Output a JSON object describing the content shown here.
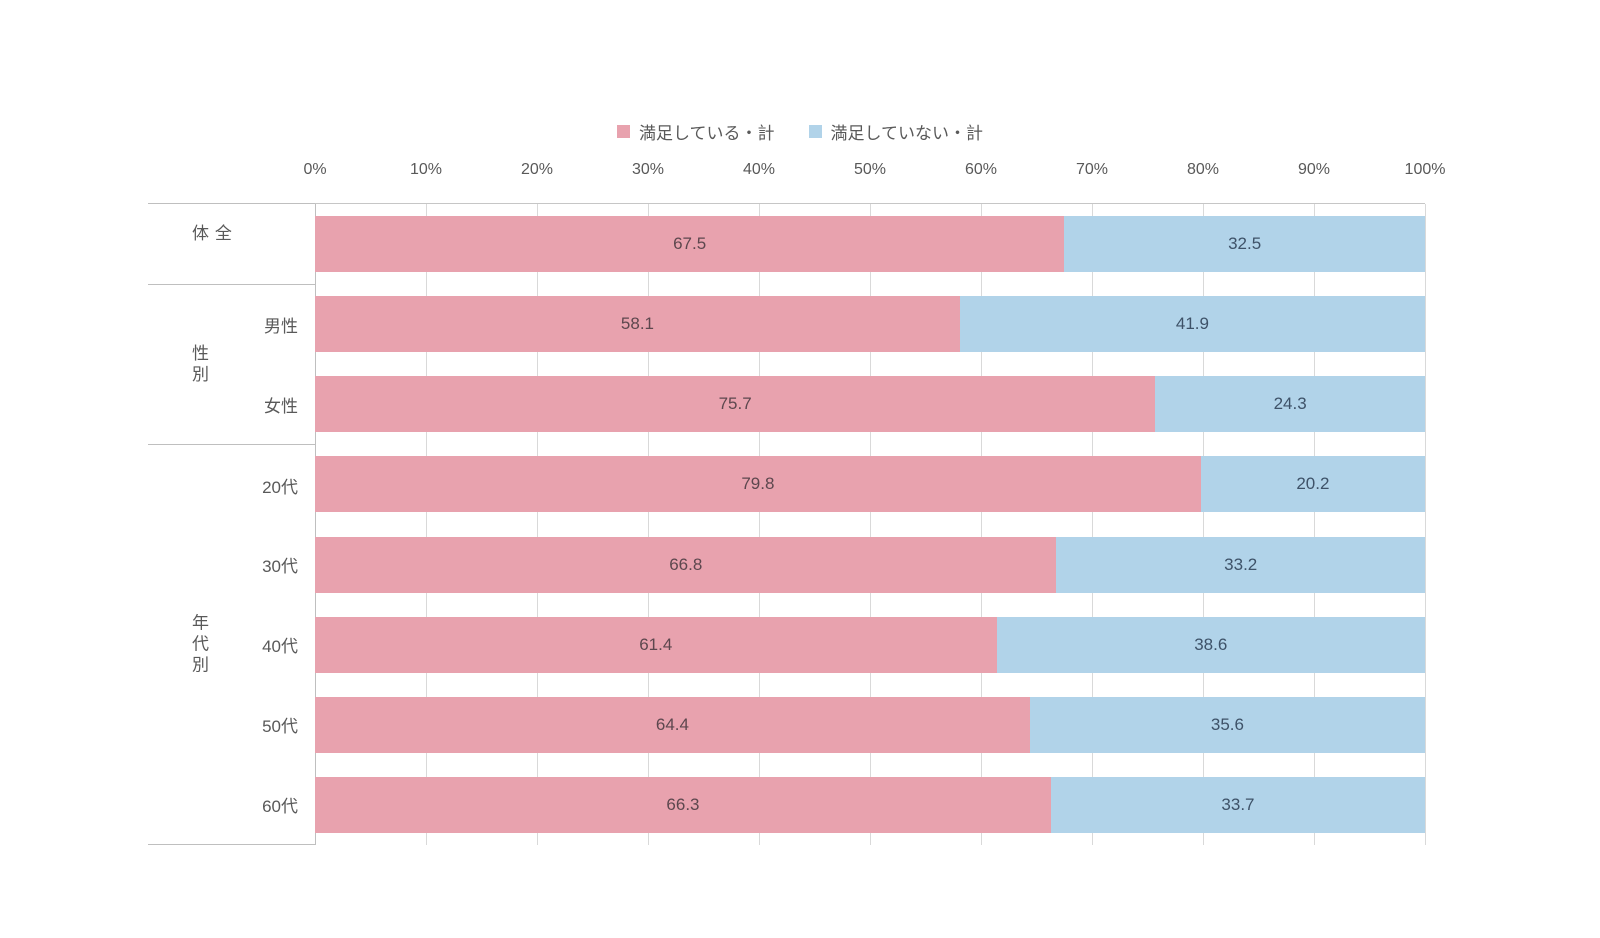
{
  "legend": {
    "items": [
      {
        "label": "満足している・計",
        "color": "#e8a2ae"
      },
      {
        "label": "満足していない・計",
        "color": "#b1d3e9"
      }
    ]
  },
  "axis": {
    "ticks": [
      "0%",
      "10%",
      "20%",
      "30%",
      "40%",
      "50%",
      "60%",
      "70%",
      "80%",
      "90%",
      "100%"
    ]
  },
  "groups": [
    {
      "label": "全体",
      "rows": []
    },
    {
      "label": "性別",
      "rows": [
        "男性",
        "女性"
      ]
    },
    {
      "label": "年代別",
      "rows": [
        "20代",
        "30代",
        "40代",
        "50代",
        "60代"
      ]
    }
  ],
  "colors": {
    "satisfied": "#e8a2ae",
    "unsatisfied": "#b1d3e9",
    "grid": "#d9d9d9",
    "border": "#bfbfbf"
  },
  "bars": [
    {
      "category": "全体",
      "satisfied": 67.5,
      "unsatisfied": 32.5
    },
    {
      "category": "男性",
      "satisfied": 58.1,
      "unsatisfied": 41.9
    },
    {
      "category": "女性",
      "satisfied": 75.7,
      "unsatisfied": 24.3
    },
    {
      "category": "20代",
      "satisfied": 79.8,
      "unsatisfied": 20.2
    },
    {
      "category": "30代",
      "satisfied": 66.8,
      "unsatisfied": 33.2
    },
    {
      "category": "40代",
      "satisfied": 61.4,
      "unsatisfied": 38.6
    },
    {
      "category": "50代",
      "satisfied": 64.4,
      "unsatisfied": 35.6
    },
    {
      "category": "60代",
      "satisfied": 66.3,
      "unsatisfied": 33.7
    }
  ],
  "chart_data": {
    "type": "bar",
    "subtype": "horizontal-stacked-100percent",
    "title": "",
    "xlabel": "",
    "ylabel": "",
    "categories": [
      "全体",
      "男性",
      "女性",
      "20代",
      "30代",
      "40代",
      "50代",
      "60代"
    ],
    "category_groups": [
      {
        "label": "全体",
        "categories": [
          "全体"
        ]
      },
      {
        "label": "性別",
        "categories": [
          "男性",
          "女性"
        ]
      },
      {
        "label": "年代別",
        "categories": [
          "20代",
          "30代",
          "40代",
          "50代",
          "60代"
        ]
      }
    ],
    "series": [
      {
        "name": "満足している・計",
        "color": "#e8a2ae",
        "values": [
          67.5,
          58.1,
          75.7,
          79.8,
          66.8,
          61.4,
          64.4,
          66.3
        ]
      },
      {
        "name": "満足していない・計",
        "color": "#b1d3e9",
        "values": [
          32.5,
          41.9,
          24.3,
          20.2,
          33.2,
          38.6,
          35.6,
          33.7
        ]
      }
    ],
    "x_ticks": [
      "0%",
      "10%",
      "20%",
      "30%",
      "40%",
      "50%",
      "60%",
      "70%",
      "80%",
      "90%",
      "100%"
    ],
    "xlim": [
      0,
      100
    ],
    "grid": true,
    "legend_position": "top",
    "data_labels": true
  }
}
